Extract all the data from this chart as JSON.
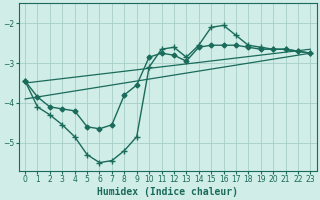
{
  "xlabel": "Humidex (Indice chaleur)",
  "bg_color": "#d0ede8",
  "grid_color": "#a8cfc8",
  "line_color": "#1a6b5a",
  "xlim": [
    -0.5,
    23.5
  ],
  "ylim": [
    -5.7,
    -1.5
  ],
  "yticks": [
    -5,
    -4,
    -3,
    -2
  ],
  "xticks": [
    0,
    1,
    2,
    3,
    4,
    5,
    6,
    7,
    8,
    9,
    10,
    11,
    12,
    13,
    14,
    15,
    16,
    17,
    18,
    19,
    20,
    21,
    22,
    23
  ],
  "series": [
    {
      "x": [
        0,
        1,
        2,
        3,
        4,
        5,
        6,
        7,
        8,
        9,
        10,
        11,
        12,
        13,
        14,
        15,
        16,
        17,
        18,
        19,
        20,
        21,
        22,
        23
      ],
      "y": [
        -3.45,
        -3.85,
        -4.1,
        -4.15,
        -4.2,
        -4.6,
        -4.65,
        -4.55,
        -3.8,
        -3.55,
        -2.85,
        -2.75,
        -2.8,
        -2.95,
        -2.6,
        -2.55,
        -2.55,
        -2.55,
        -2.6,
        -2.65,
        -2.65,
        -2.65,
        -2.7,
        -2.75
      ],
      "marker": "D",
      "markersize": 2.5,
      "linewidth": 1.0
    },
    {
      "x": [
        0,
        23
      ],
      "y": [
        -3.5,
        -2.65
      ],
      "marker": null,
      "linewidth": 0.9
    },
    {
      "x": [
        0,
        1,
        2,
        3,
        4,
        5,
        6,
        7,
        8,
        9,
        10,
        11,
        12,
        13,
        14,
        15,
        16,
        17,
        18,
        19,
        20,
        21,
        22,
        23
      ],
      "y": [
        -3.45,
        -4.1,
        -4.3,
        -4.55,
        -4.85,
        -5.3,
        -5.5,
        -5.45,
        -5.2,
        -4.85,
        -3.1,
        -2.65,
        -2.6,
        -2.85,
        -2.55,
        -2.1,
        -2.05,
        -2.3,
        -2.55,
        -2.6,
        -2.65,
        -2.65,
        -2.7,
        -2.75
      ],
      "marker": "+",
      "markersize": 4,
      "linewidth": 1.0
    },
    {
      "x": [
        0,
        23
      ],
      "y": [
        -3.9,
        -2.75
      ],
      "marker": null,
      "linewidth": 0.9
    }
  ]
}
